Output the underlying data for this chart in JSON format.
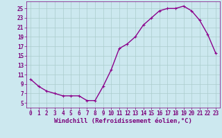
{
  "x": [
    0,
    1,
    2,
    3,
    4,
    5,
    6,
    7,
    8,
    9,
    10,
    11,
    12,
    13,
    14,
    15,
    16,
    17,
    18,
    19,
    20,
    21,
    22,
    23
  ],
  "y": [
    10.0,
    8.5,
    7.5,
    7.0,
    6.5,
    6.5,
    6.5,
    5.5,
    5.5,
    8.5,
    12.0,
    16.5,
    17.5,
    19.0,
    21.5,
    23.0,
    24.5,
    25.0,
    25.0,
    25.5,
    24.5,
    22.5,
    19.5,
    15.5
  ],
  "line_color": "#8b008b",
  "marker": "+",
  "bg_color": "#cce8ef",
  "grid_color": "#aacccc",
  "xlabel": "Windchill (Refroidissement éolien,°C)",
  "xlim": [
    -0.5,
    23.5
  ],
  "ylim": [
    4,
    26.5
  ],
  "yticks": [
    5,
    7,
    9,
    11,
    13,
    15,
    17,
    19,
    21,
    23,
    25
  ],
  "xticks": [
    0,
    1,
    2,
    3,
    4,
    5,
    6,
    7,
    8,
    9,
    10,
    11,
    12,
    13,
    14,
    15,
    16,
    17,
    18,
    19,
    20,
    21,
    22,
    23
  ],
  "font_color": "#7b007b",
  "tick_fontsize": 5.5,
  "xlabel_fontsize": 6.5,
  "linewidth": 1.0,
  "markersize": 3.5,
  "markeredgewidth": 0.8
}
